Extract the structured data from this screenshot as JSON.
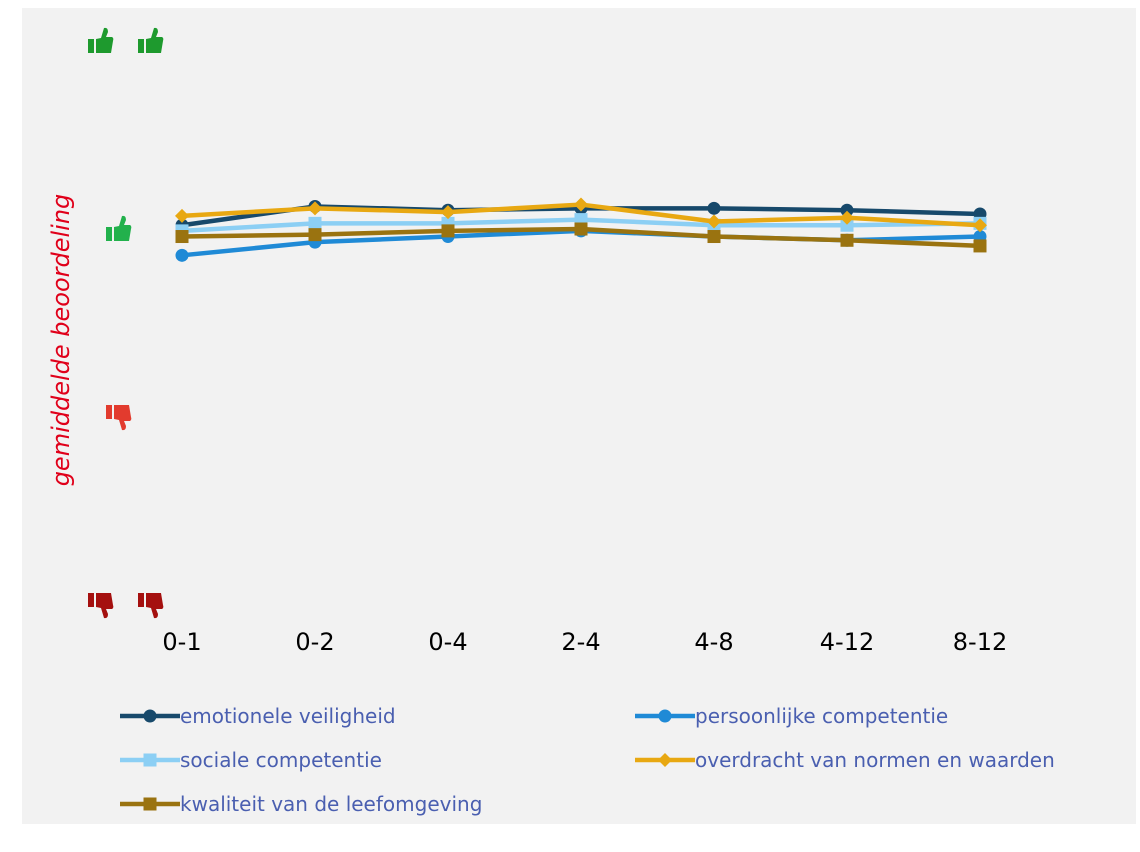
{
  "chart_data": {
    "type": "line",
    "categories": [
      "0-1",
      "0-2",
      "0-4",
      "2-4",
      "4-8",
      "4-12",
      "8-12"
    ],
    "ylabel": "gemiddelde beoordeling",
    "ylim": [
      1,
      4
    ],
    "y_scale_icons": [
      {
        "level": 4,
        "icon": "double-thumbs-up-icon",
        "color": "#1e9a2e"
      },
      {
        "level": 3,
        "icon": "thumbs-up-icon",
        "color": "#22b14c"
      },
      {
        "level": 2,
        "icon": "thumbs-down-icon",
        "color": "#e23b2e"
      },
      {
        "level": 1,
        "icon": "double-thumbs-down-icon",
        "color": "#a5100f"
      }
    ],
    "grid": false,
    "legend_position": "bottom",
    "series": [
      {
        "name": "emotionele veiligheid",
        "color": "#17496b",
        "marker": "circle",
        "values": [
          3.02,
          3.12,
          3.1,
          3.11,
          3.11,
          3.1,
          3.08
        ]
      },
      {
        "name": "persoonlijke competentie",
        "color": "#1f8ad6",
        "marker": "circle",
        "values": [
          2.86,
          2.93,
          2.96,
          2.99,
          2.96,
          2.94,
          2.96
        ]
      },
      {
        "name": "sociale competentie",
        "color": "#8ccff4",
        "marker": "square",
        "values": [
          2.99,
          3.03,
          3.03,
          3.05,
          3.02,
          3.02,
          3.03
        ]
      },
      {
        "name": "overdracht van normen en waarden",
        "color": "#e8a812",
        "marker": "diamond",
        "values": [
          3.07,
          3.11,
          3.09,
          3.13,
          3.04,
          3.06,
          3.02
        ]
      },
      {
        "name": "kwaliteit van de leefomgeving",
        "color": "#9a7310",
        "marker": "square",
        "values": [
          2.96,
          2.97,
          2.99,
          3.0,
          2.96,
          2.94,
          2.91
        ]
      }
    ]
  },
  "colors": {
    "ylabel": "#e0001a",
    "legend_text": "#4a5fb0",
    "tick_text": "#000000",
    "panel_background": "#f2f2f2"
  }
}
